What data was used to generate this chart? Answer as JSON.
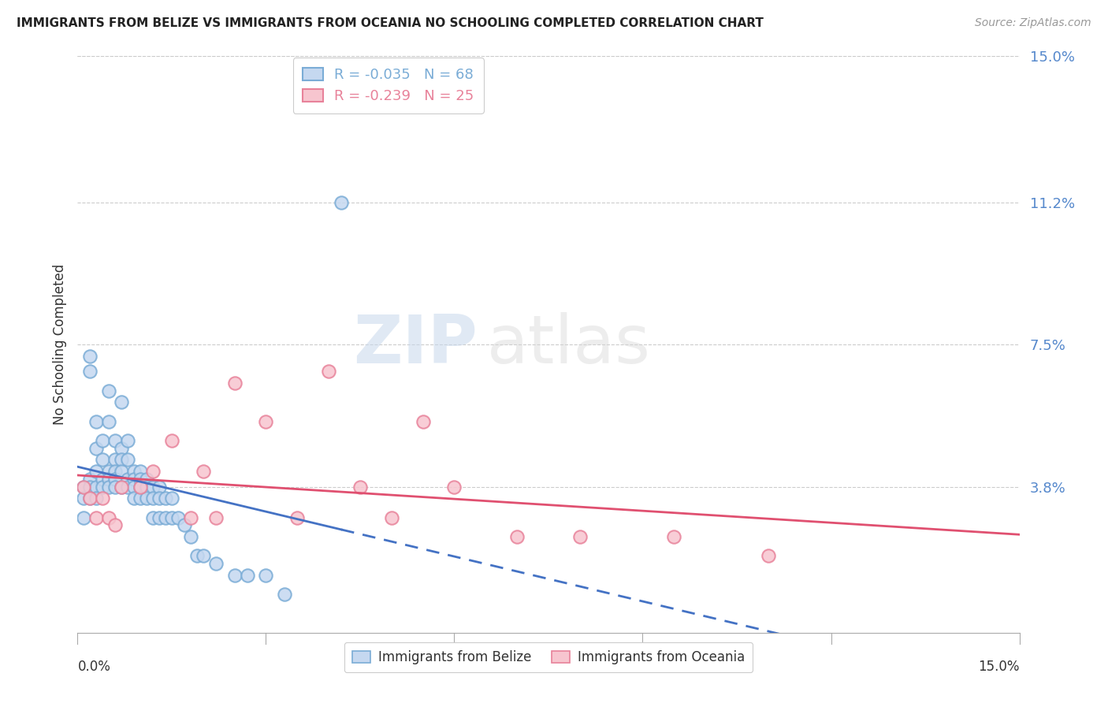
{
  "title": "IMMIGRANTS FROM BELIZE VS IMMIGRANTS FROM OCEANIA NO SCHOOLING COMPLETED CORRELATION CHART",
  "source": "Source: ZipAtlas.com",
  "ylabel": "No Schooling Completed",
  "ytick_labels": [
    "15.0%",
    "11.2%",
    "7.5%",
    "3.8%"
  ],
  "ytick_values": [
    0.15,
    0.112,
    0.075,
    0.038
  ],
  "xlim": [
    0.0,
    0.15
  ],
  "ylim": [
    0.0,
    0.15
  ],
  "belize_R": -0.035,
  "belize_N": 68,
  "oceania_R": -0.239,
  "oceania_N": 25,
  "belize_fill": "#C5D8F0",
  "belize_edge": "#7AACD6",
  "oceania_fill": "#F7C5CF",
  "oceania_edge": "#E8829A",
  "trend_blue": "#4472C4",
  "trend_pink": "#E05070",
  "belize_x": [
    0.001,
    0.001,
    0.001,
    0.002,
    0.002,
    0.002,
    0.002,
    0.002,
    0.003,
    0.003,
    0.003,
    0.003,
    0.003,
    0.004,
    0.004,
    0.004,
    0.004,
    0.005,
    0.005,
    0.005,
    0.005,
    0.005,
    0.006,
    0.006,
    0.006,
    0.006,
    0.006,
    0.007,
    0.007,
    0.007,
    0.007,
    0.007,
    0.008,
    0.008,
    0.008,
    0.008,
    0.009,
    0.009,
    0.009,
    0.009,
    0.01,
    0.01,
    0.01,
    0.01,
    0.011,
    0.011,
    0.011,
    0.012,
    0.012,
    0.012,
    0.013,
    0.013,
    0.013,
    0.014,
    0.014,
    0.015,
    0.015,
    0.016,
    0.017,
    0.018,
    0.019,
    0.02,
    0.022,
    0.025,
    0.027,
    0.03,
    0.033,
    0.042
  ],
  "belize_y": [
    0.038,
    0.035,
    0.03,
    0.072,
    0.068,
    0.04,
    0.038,
    0.035,
    0.055,
    0.048,
    0.042,
    0.038,
    0.035,
    0.05,
    0.045,
    0.04,
    0.038,
    0.063,
    0.055,
    0.042,
    0.04,
    0.038,
    0.05,
    0.045,
    0.042,
    0.04,
    0.038,
    0.06,
    0.048,
    0.045,
    0.042,
    0.038,
    0.05,
    0.045,
    0.04,
    0.038,
    0.042,
    0.04,
    0.038,
    0.035,
    0.042,
    0.04,
    0.038,
    0.035,
    0.04,
    0.038,
    0.035,
    0.038,
    0.035,
    0.03,
    0.038,
    0.035,
    0.03,
    0.035,
    0.03,
    0.035,
    0.03,
    0.03,
    0.028,
    0.025,
    0.02,
    0.02,
    0.018,
    0.015,
    0.015,
    0.015,
    0.01,
    0.112
  ],
  "oceania_x": [
    0.001,
    0.002,
    0.003,
    0.004,
    0.005,
    0.006,
    0.007,
    0.01,
    0.012,
    0.015,
    0.018,
    0.02,
    0.022,
    0.025,
    0.03,
    0.035,
    0.04,
    0.045,
    0.05,
    0.055,
    0.06,
    0.07,
    0.08,
    0.095,
    0.11
  ],
  "oceania_y": [
    0.038,
    0.035,
    0.03,
    0.035,
    0.03,
    0.028,
    0.038,
    0.038,
    0.042,
    0.05,
    0.03,
    0.042,
    0.03,
    0.065,
    0.055,
    0.03,
    0.068,
    0.038,
    0.03,
    0.055,
    0.038,
    0.025,
    0.025,
    0.025,
    0.02
  ]
}
